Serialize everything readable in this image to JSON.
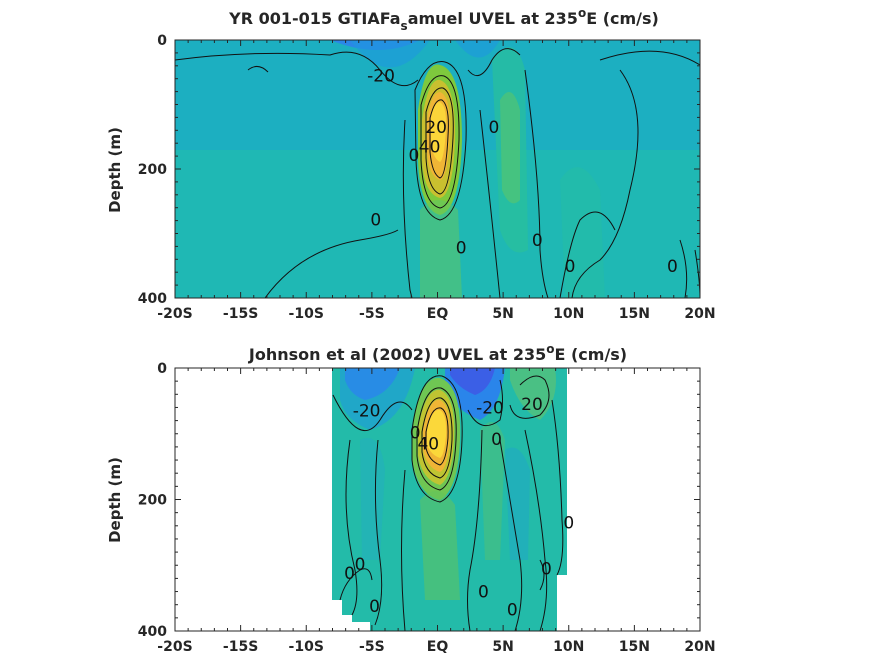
{
  "chart_data": [
    {
      "type": "heatmap",
      "title": "YR 001-015 GTIAFa_samuel UVEL at 235^oE (cm/s)",
      "title_parts": {
        "pre": "YR 001-015 GTIAFa",
        "sub": "s",
        "mid": "amuel UVEL at 235",
        "sup": "o",
        "post": "E (cm/s)"
      },
      "xlabel": "",
      "ylabel": "Depth (m)",
      "xlim": [
        -20,
        20
      ],
      "ylim": [
        0,
        400
      ],
      "y_reversed": true,
      "x_ticks": [
        -20,
        -15,
        -10,
        -5,
        0,
        5,
        10,
        15,
        20
      ],
      "x_tick_labels": [
        "-20S",
        "-15S",
        "-10S",
        "-5S",
        "EQ",
        "5N",
        "10N",
        "15N",
        "20N"
      ],
      "y_ticks": [
        0,
        200,
        400
      ],
      "y_tick_labels": [
        "0",
        "200",
        "400"
      ],
      "data_extent_x": [
        -20,
        20
      ],
      "contour_labels": [
        {
          "text": "-20",
          "x": -4.3,
          "y": 55
        },
        {
          "text": "20",
          "x": -0.1,
          "y": 135
        },
        {
          "text": "0",
          "x": -1.8,
          "y": 178
        },
        {
          "text": "40",
          "x": -0.6,
          "y": 165
        },
        {
          "text": "0",
          "x": 4.3,
          "y": 135
        },
        {
          "text": "0",
          "x": -4.7,
          "y": 278
        },
        {
          "text": "0",
          "x": 1.8,
          "y": 322
        },
        {
          "text": "0",
          "x": 7.6,
          "y": 310
        },
        {
          "text": "0",
          "x": 10.1,
          "y": 350
        },
        {
          "text": "0",
          "x": 17.9,
          "y": 350
        }
      ]
    },
    {
      "type": "heatmap",
      "title": "Johnson et al (2002) UVEL at 235^oE (cm/s)",
      "title_parts": {
        "pre": "Johnson et al (2002) UVEL at 235",
        "sub": "",
        "mid": "",
        "sup": "o",
        "post": "E (cm/s)"
      },
      "xlabel": "",
      "ylabel": "Depth (m)",
      "xlim": [
        -20,
        20
      ],
      "ylim": [
        0,
        400
      ],
      "y_reversed": true,
      "x_ticks": [
        -20,
        -15,
        -10,
        -5,
        0,
        5,
        10,
        15,
        20
      ],
      "x_tick_labels": [
        "-20S",
        "-15S",
        "-10S",
        "-5S",
        "EQ",
        "5N",
        "10N",
        "15N",
        "20N"
      ],
      "y_ticks": [
        0,
        200,
        400
      ],
      "y_tick_labels": [
        "0",
        "200",
        "400"
      ],
      "data_extent_x": [
        -8,
        10
      ],
      "contour_labels": [
        {
          "text": "-20",
          "x": -5.4,
          "y": 65
        },
        {
          "text": "-20",
          "x": 4.0,
          "y": 60
        },
        {
          "text": "20",
          "x": 7.2,
          "y": 55
        },
        {
          "text": "0",
          "x": -1.7,
          "y": 98
        },
        {
          "text": "40",
          "x": -0.7,
          "y": 115
        },
        {
          "text": "0",
          "x": 4.5,
          "y": 108
        },
        {
          "text": "0",
          "x": 10.0,
          "y": 235
        },
        {
          "text": "0",
          "x": -5.9,
          "y": 298
        },
        {
          "text": "0",
          "x": -6.7,
          "y": 312
        },
        {
          "text": "0",
          "x": 8.3,
          "y": 305
        },
        {
          "text": "0",
          "x": 3.5,
          "y": 340
        },
        {
          "text": "0",
          "x": -4.8,
          "y": 362
        },
        {
          "text": "0",
          "x": 5.7,
          "y": 367
        }
      ]
    }
  ]
}
